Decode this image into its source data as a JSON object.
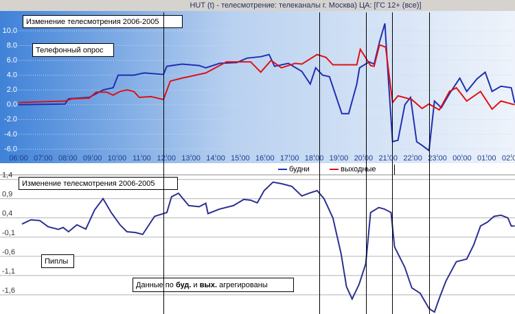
{
  "window_title": "HUT (t) - телесмотрение: телеканалы  г. Москва)   ЦА: [ГС 12+ (все)]",
  "chart_data": [
    {
      "type": "line",
      "annotations": [
        "Изменение телесмотрения 2006-2005",
        "Телефонный опрос"
      ],
      "xlim": [
        6,
        26.15
      ],
      "xticks": [
        {
          "value": 6,
          "label": "06:00"
        },
        {
          "value": 7,
          "label": "07:00"
        },
        {
          "value": 8,
          "label": "08:00"
        },
        {
          "value": 9,
          "label": "09:00"
        },
        {
          "value": 10,
          "label": "10:00"
        },
        {
          "value": 11,
          "label": "11:00"
        },
        {
          "value": 12,
          "label": "12:00"
        },
        {
          "value": 13,
          "label": "13:00"
        },
        {
          "value": 14,
          "label": "14:00"
        },
        {
          "value": 15,
          "label": "15:00"
        },
        {
          "value": 16,
          "label": "16:00"
        },
        {
          "value": 17,
          "label": "17:00"
        },
        {
          "value": 18,
          "label": "18:00"
        },
        {
          "value": 19,
          "label": "19:00"
        },
        {
          "value": 20,
          "label": "20:00"
        },
        {
          "value": 21,
          "label": "21:00"
        },
        {
          "value": 22,
          "label": "22:00"
        },
        {
          "value": 23,
          "label": "23:00"
        },
        {
          "value": 24,
          "label": "00:00"
        },
        {
          "value": 25,
          "label": "01:00"
        },
        {
          "value": 26,
          "label": "02:00"
        }
      ],
      "ylim": [
        -6.7,
        12.5
      ],
      "yticks": [
        {
          "value": 10,
          "label": "10.0"
        },
        {
          "value": 8,
          "label": "8.0"
        },
        {
          "value": 6,
          "label": "6.0"
        },
        {
          "value": 4,
          "label": "4.0"
        },
        {
          "value": 2,
          "label": "2.0"
        },
        {
          "value": 0,
          "label": "0.0"
        },
        {
          "value": -2,
          "label": "-2.0"
        },
        {
          "value": -4,
          "label": "-4.0"
        },
        {
          "value": -6,
          "label": "-6.0"
        }
      ],
      "grid": true,
      "series": [
        {
          "name": "будни",
          "color": "#1f2fb0",
          "x": [
            6.0,
            7.89,
            8.03,
            8.87,
            9.43,
            9.84,
            10.04,
            10.68,
            11.1,
            11.88,
            12.02,
            12.63,
            13.33,
            13.6,
            14.16,
            14.86,
            15.27,
            15.83,
            16.17,
            16.39,
            16.95,
            17.5,
            17.84,
            18.06,
            18.34,
            18.62,
            19.12,
            19.4,
            19.73,
            19.84,
            20.23,
            20.43,
            20.65,
            20.87,
            20.98,
            21.18,
            21.4,
            21.68,
            21.91,
            22.16,
            22.38,
            22.66,
            22.88,
            23.16,
            23.49,
            23.91,
            24.19,
            24.61,
            24.94,
            25.22,
            25.58,
            26.0,
            26.14
          ],
          "values": [
            0.0,
            0.1,
            0.8,
            1.0,
            2.0,
            2.3,
            4.0,
            4.0,
            4.3,
            4.1,
            5.2,
            5.5,
            5.3,
            5.0,
            5.6,
            5.7,
            6.3,
            6.5,
            6.8,
            5.2,
            5.6,
            4.5,
            2.8,
            5.0,
            4.0,
            3.8,
            -1.2,
            -1.2,
            2.8,
            5.0,
            5.8,
            5.5,
            8.5,
            11.0,
            5.0,
            -5.0,
            -4.8,
            0.0,
            1.0,
            -5.0,
            -5.5,
            -6.2,
            0.5,
            -0.4,
            1.5,
            3.6,
            1.8,
            3.5,
            4.4,
            1.8,
            2.5,
            2.3,
            0.2
          ]
        },
        {
          "name": "выходные",
          "color": "#e01010",
          "x": [
            6.0,
            7.89,
            8.17,
            8.87,
            9.15,
            9.57,
            9.84,
            10.12,
            10.4,
            10.68,
            10.9,
            11.38,
            11.88,
            12.16,
            12.63,
            13.19,
            13.6,
            14.44,
            15.42,
            15.83,
            16.25,
            16.67,
            17.23,
            17.5,
            18.12,
            18.48,
            18.76,
            19.73,
            19.87,
            20.29,
            20.43,
            20.65,
            20.9,
            21.18,
            21.4,
            21.96,
            22.38,
            22.66,
            23.08,
            23.49,
            23.77,
            24.19,
            24.75,
            25.22,
            25.58,
            26.14
          ],
          "values": [
            0.3,
            0.5,
            0.8,
            0.9,
            1.7,
            1.7,
            1.3,
            1.8,
            2.0,
            1.8,
            1.0,
            1.1,
            0.7,
            3.2,
            3.6,
            4.0,
            4.3,
            5.8,
            5.8,
            4.4,
            6.0,
            5.0,
            5.6,
            5.5,
            6.8,
            6.4,
            5.4,
            5.4,
            7.5,
            5.3,
            5.2,
            8.1,
            7.8,
            0.3,
            1.2,
            0.7,
            -0.5,
            0.1,
            -0.7,
            1.8,
            2.3,
            0.5,
            1.8,
            -0.6,
            0.5,
            0.0
          ]
        }
      ]
    },
    {
      "type": "line",
      "annotations": [
        "Изменение телесмотрения 2006-2005",
        "Пиплы",
        [
          "Данные по ",
          "буд.",
          " и ",
          "вых.",
          " агрегированы"
        ]
      ],
      "xlim": [
        6,
        26.15
      ],
      "ylim": [
        -2.1,
        1.52
      ],
      "yticks": [
        {
          "value": 1.4,
          "label": "1,4"
        },
        {
          "value": 0.9,
          "label": "0,9"
        },
        {
          "value": 0.4,
          "label": "0,4"
        },
        {
          "value": -0.1,
          "label": "-0,1"
        },
        {
          "value": -0.6,
          "label": "-0,6"
        },
        {
          "value": -1.1,
          "label": "-1,1"
        },
        {
          "value": -1.6,
          "label": "-1,6"
        }
      ],
      "grid": true,
      "series": [
        {
          "color": "#2b2f8f",
          "x": [
            6.14,
            6.5,
            6.86,
            7.2,
            7.62,
            7.81,
            8.03,
            8.37,
            8.73,
            9.09,
            9.43,
            9.76,
            10.12,
            10.4,
            10.74,
            11.04,
            11.52,
            12.02,
            12.21,
            12.49,
            12.91,
            13.33,
            13.6,
            13.69,
            14.16,
            14.72,
            15.14,
            15.42,
            15.69,
            15.97,
            16.33,
            16.67,
            17.09,
            17.5,
            17.78,
            18.12,
            18.4,
            18.76,
            19.09,
            19.31,
            19.54,
            19.82,
            20.09,
            20.29,
            20.62,
            20.85,
            21.12,
            21.26,
            21.68,
            21.96,
            22.3,
            22.66,
            22.88,
            23.08,
            23.35,
            23.77,
            24.19,
            24.47,
            24.75,
            25.03,
            25.3,
            25.58,
            25.86,
            26.0,
            26.14
          ],
          "values": [
            0.24,
            0.35,
            0.33,
            0.17,
            0.1,
            0.15,
            0.04,
            0.22,
            0.11,
            0.61,
            0.9,
            0.54,
            0.22,
            0.04,
            0.02,
            -0.03,
            0.44,
            0.54,
            0.95,
            1.04,
            0.72,
            0.69,
            0.78,
            0.51,
            0.63,
            0.72,
            0.88,
            0.86,
            0.79,
            1.11,
            1.33,
            1.29,
            1.22,
            0.97,
            1.04,
            1.11,
            0.9,
            0.4,
            -0.53,
            -1.39,
            -1.71,
            -1.33,
            -0.8,
            0.54,
            0.67,
            0.63,
            0.54,
            -0.35,
            -0.89,
            -1.42,
            -1.56,
            -1.96,
            -2.05,
            -1.69,
            -1.24,
            -0.74,
            -0.67,
            -0.31,
            0.19,
            0.29,
            0.44,
            0.47,
            0.4,
            0.19,
            0.19
          ]
        }
      ]
    }
  ]
}
